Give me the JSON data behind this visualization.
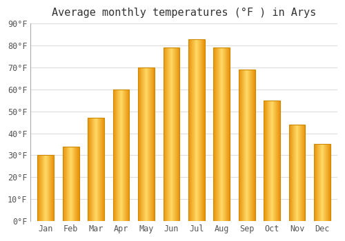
{
  "title": "Average monthly temperatures (°F ) in Arys",
  "months": [
    "Jan",
    "Feb",
    "Mar",
    "Apr",
    "May",
    "Jun",
    "Jul",
    "Aug",
    "Sep",
    "Oct",
    "Nov",
    "Dec"
  ],
  "values": [
    30,
    34,
    47,
    60,
    70,
    79,
    83,
    79,
    69,
    55,
    44,
    35
  ],
  "bar_color_center": "#FFD966",
  "bar_color_edge": "#E8920A",
  "bar_border_color": "#CC8800",
  "background_color": "#FFFFFF",
  "grid_color": "#DDDDDD",
  "ylim": [
    0,
    90
  ],
  "ytick_step": 10,
  "title_fontsize": 11,
  "tick_fontsize": 8.5,
  "font_family": "monospace"
}
